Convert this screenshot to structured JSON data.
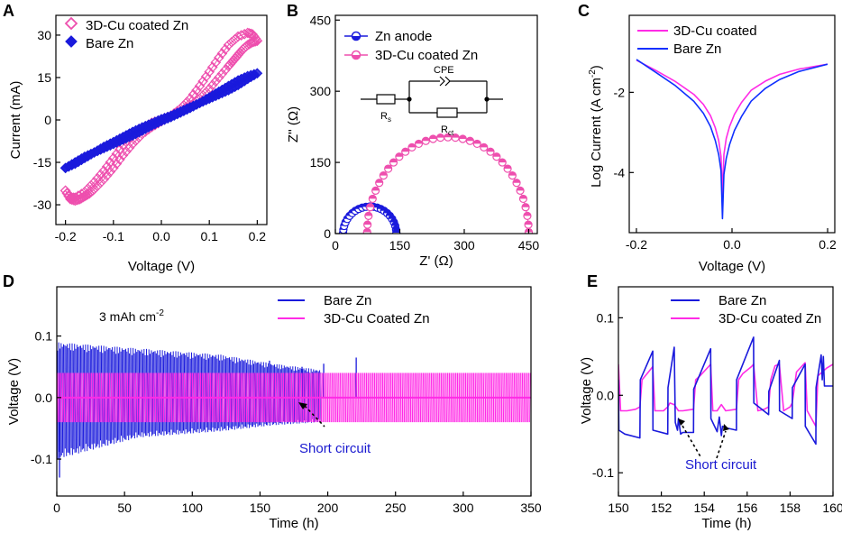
{
  "colors": {
    "blue": "#1a1adc",
    "pink": "#ee4fae",
    "magenta": "#ff2be6",
    "bluebright": "#1030ff",
    "sublabel": "#1a1ad0"
  },
  "chart_data": [
    {
      "panel": "A",
      "type": "line",
      "title": "",
      "xlabel": "Voltage (V)",
      "ylabel": "Current (mA)",
      "xlim": [
        -0.22,
        0.22
      ],
      "ylim": [
        -37,
        37
      ],
      "xticks": [
        -0.2,
        -0.1,
        0.0,
        0.1,
        0.2
      ],
      "xticklabels": [
        "-0.2",
        "-0.1",
        "0.0",
        "0.1",
        "0.2"
      ],
      "yticks": [
        -30,
        -15,
        0,
        15,
        30
      ],
      "yticklabels": [
        "-30",
        "-15",
        "0",
        "15",
        "30"
      ],
      "series": [
        {
          "name": "3D-Cu coated Zn",
          "color": "#ee4fae",
          "marker": "open-diamond",
          "x": [
            -0.2,
            -0.19,
            -0.18,
            -0.17,
            -0.16,
            -0.15,
            -0.14,
            -0.12,
            -0.1,
            -0.08,
            -0.06,
            -0.04,
            -0.02,
            0.0,
            0.02,
            0.04,
            0.06,
            0.08,
            0.1,
            0.12,
            0.14,
            0.16,
            0.18,
            0.19,
            0.2,
            0.19,
            0.18,
            0.17,
            0.16,
            0.15,
            0.14,
            0.12,
            0.1,
            0.08,
            0.06,
            0.04,
            0.02,
            0.0,
            -0.02,
            -0.04,
            -0.06,
            -0.08,
            -0.1,
            -0.12,
            -0.14,
            -0.16,
            -0.18,
            -0.19,
            -0.2
          ],
          "y": [
            -25,
            -28,
            -28.5,
            -28,
            -27,
            -26,
            -24.5,
            -21,
            -17,
            -12.5,
            -8.5,
            -5,
            -2.5,
            -0.5,
            1.5,
            4,
            7.5,
            12,
            17,
            22,
            26.5,
            29.5,
            30.8,
            30.3,
            28,
            27.5,
            26.5,
            25,
            23,
            21,
            19,
            15,
            11,
            7.5,
            5,
            3,
            1.5,
            0.2,
            -1,
            -3,
            -5.5,
            -9,
            -13.5,
            -18,
            -22,
            -25.5,
            -27.5,
            -27.5,
            -25
          ]
        },
        {
          "name": "Bare Zn",
          "color": "#1a1adc",
          "marker": "filled-diamond",
          "x": [
            -0.2,
            -0.18,
            -0.16,
            -0.14,
            -0.12,
            -0.1,
            -0.08,
            -0.06,
            -0.04,
            -0.02,
            0.0,
            0.02,
            0.04,
            0.06,
            0.08,
            0.1,
            0.12,
            0.14,
            0.16,
            0.18,
            0.2,
            0.18,
            0.16,
            0.14,
            0.12,
            0.1,
            0.08,
            0.06,
            0.04,
            0.02,
            0.0,
            -0.02,
            -0.04,
            -0.06,
            -0.08,
            -0.1,
            -0.12,
            -0.14,
            -0.16,
            -0.18,
            -0.2
          ],
          "y": [
            -17,
            -15,
            -13,
            -11.5,
            -10,
            -8.5,
            -7,
            -5.5,
            -3.8,
            -2,
            -0.4,
            1,
            2.6,
            4.2,
            6,
            8,
            10,
            12,
            14,
            15.5,
            16.5,
            14.5,
            12.3,
            10.5,
            9,
            7.5,
            6,
            4.5,
            3,
            1.5,
            0.3,
            -1.2,
            -2.6,
            -4.2,
            -6,
            -7.8,
            -9.5,
            -11.5,
            -13.5,
            -15.5,
            -17
          ]
        }
      ]
    },
    {
      "panel": "B",
      "type": "scatter",
      "title": "",
      "xlabel": "Z' (Ω)",
      "ylabel": "Z'' (Ω)",
      "xlim": [
        0,
        470
      ],
      "ylim": [
        0,
        460
      ],
      "xticks": [
        0,
        150,
        300,
        450
      ],
      "xticklabels": [
        "0",
        "150",
        "300",
        "450"
      ],
      "yticks": [
        0,
        150,
        300,
        450
      ],
      "yticklabels": [
        "0",
        "150",
        "300",
        "450"
      ],
      "series": [
        {
          "name": "Zn anode",
          "color": "#1a1adc",
          "marker": "half-filled-circle",
          "center": 80,
          "radius": 62,
          "ymax": 57
        },
        {
          "name": "3D-Cu coated Zn",
          "color": "#ee4fae",
          "marker": "half-filled-circle",
          "center": 262,
          "radius": 188,
          "ymax": 203
        }
      ],
      "circuit": {
        "label": "CPE",
        "r1": "R",
        "r1_sub": "s",
        "r2": "R",
        "r2_sub": "ct"
      }
    },
    {
      "panel": "C",
      "type": "line",
      "title": "",
      "xlabel": "Voltage (V)",
      "ylabel": "Log Current (A cm",
      "ylabel_sup": "-2",
      "ylabel_tail": ")",
      "xlim": [
        -0.215,
        0.215
      ],
      "ylim": [
        -5.5,
        -0.08
      ],
      "xticks": [
        -0.2,
        0.0,
        0.2
      ],
      "xticklabels": [
        "-0.2",
        "0.0",
        "0.2"
      ],
      "yticks": [
        -4,
        -2
      ],
      "yticklabels": [
        "-4",
        "-2"
      ],
      "series": [
        {
          "name": "3D-Cu coated",
          "color": "#ff2be6",
          "x": [
            -0.2,
            -0.16,
            -0.12,
            -0.08,
            -0.06,
            -0.045,
            -0.035,
            -0.028,
            -0.023,
            -0.02,
            -0.017,
            -0.012,
            -0.005,
            0.005,
            0.02,
            0.04,
            0.07,
            0.1,
            0.14,
            0.2
          ],
          "y": [
            -1.2,
            -1.45,
            -1.72,
            -2.05,
            -2.3,
            -2.58,
            -2.88,
            -3.2,
            -3.6,
            -4.55,
            -3.55,
            -3.15,
            -2.85,
            -2.55,
            -2.25,
            -1.95,
            -1.72,
            -1.55,
            -1.42,
            -1.3
          ]
        },
        {
          "name": "Bare Zn",
          "color": "#1030ff",
          "x": [
            -0.2,
            -0.16,
            -0.12,
            -0.08,
            -0.06,
            -0.045,
            -0.035,
            -0.028,
            -0.023,
            -0.02,
            -0.017,
            -0.012,
            -0.005,
            0.005,
            0.02,
            0.04,
            0.07,
            0.1,
            0.14,
            0.2
          ],
          "y": [
            -1.18,
            -1.5,
            -1.82,
            -2.22,
            -2.52,
            -2.85,
            -3.2,
            -3.55,
            -3.95,
            -5.15,
            -4.05,
            -3.65,
            -3.3,
            -2.95,
            -2.6,
            -2.22,
            -1.9,
            -1.68,
            -1.48,
            -1.3
          ]
        }
      ]
    },
    {
      "panel": "D",
      "type": "line",
      "title": "",
      "xlabel": "Time (h)",
      "ylabel": "Voltage (V)",
      "xlim": [
        0,
        350
      ],
      "ylim": [
        -0.16,
        0.18
      ],
      "xticks": [
        0,
        50,
        100,
        150,
        200,
        250,
        300,
        350
      ],
      "xticklabels": [
        "0",
        "50",
        "100",
        "150",
        "200",
        "250",
        "300",
        "350"
      ],
      "yticks": [
        -0.1,
        0.0,
        0.1
      ],
      "yticklabels": [
        "-0.1",
        "0.0",
        "0.1"
      ],
      "annotation": "3 mAh cm",
      "annotation_sup": "-2",
      "series": [
        {
          "name": "Bare Zn",
          "color": "#1a1adc",
          "x_end": 195,
          "upper_envelope": [
            [
              0,
              0.09
            ],
            [
              60,
              0.08
            ],
            [
              120,
              0.07
            ],
            [
              160,
              0.055
            ],
            [
              195,
              0.045
            ]
          ],
          "lower_envelope": [
            [
              0,
              -0.1
            ],
            [
              60,
              -0.065
            ],
            [
              120,
              -0.055
            ],
            [
              160,
              -0.045
            ],
            [
              195,
              -0.04
            ]
          ],
          "spikes": [
            [
              2,
              -0.13
            ],
            [
              157,
              0.06
            ],
            [
              181,
              0.05
            ],
            [
              197,
              0.055
            ],
            [
              221,
              0.065
            ]
          ]
        },
        {
          "name": "3D-Cu Coated Zn",
          "color": "#ff2be6",
          "x_end": 350,
          "upper": 0.04,
          "lower": -0.04
        }
      ],
      "callout": "Short circuit"
    },
    {
      "panel": "E",
      "type": "line",
      "title": "",
      "xlabel": "Time (h)",
      "ylabel": "Voltage (V)",
      "xlim": [
        150,
        160
      ],
      "ylim": [
        -0.13,
        0.14
      ],
      "xticks": [
        150,
        152,
        154,
        156,
        158,
        160
      ],
      "xticklabels": [
        "150",
        "152",
        "154",
        "156",
        "158",
        "160"
      ],
      "yticks": [
        -0.1,
        0.0,
        0.1
      ],
      "yticklabels": [
        "-0.1",
        "0.0",
        "0.1"
      ],
      "series": [
        {
          "name": "Bare Zn",
          "color": "#1a1adc",
          "x": [
            150.0,
            150.02,
            150.3,
            151.0,
            151.02,
            151.6,
            151.61,
            152.3,
            152.31,
            152.6,
            152.65,
            152.75,
            152.8,
            152.9,
            153.0,
            153.5,
            153.51,
            154.3,
            154.31,
            154.6,
            154.7,
            154.8,
            154.85,
            155.0,
            155.5,
            155.51,
            156.3,
            156.31,
            157.0,
            157.01,
            157.5,
            157.51,
            158.1,
            158.11,
            158.7,
            158.71,
            159.2,
            159.21,
            159.45,
            159.5,
            159.55,
            159.6,
            160.0
          ],
          "y": [
            0.02,
            -0.045,
            -0.05,
            -0.055,
            0.02,
            0.057,
            -0.045,
            -0.05,
            0.01,
            0.062,
            -0.035,
            -0.045,
            -0.03,
            -0.05,
            -0.048,
            -0.048,
            0.008,
            0.06,
            -0.03,
            -0.047,
            -0.028,
            -0.052,
            -0.04,
            -0.042,
            -0.045,
            0.02,
            0.075,
            -0.01,
            -0.025,
            0.005,
            0.045,
            -0.02,
            -0.03,
            0.01,
            0.04,
            -0.04,
            -0.063,
            0.01,
            0.052,
            0.02,
            0.05,
            0.012,
            0.012
          ]
        },
        {
          "name": "3D-Cu coated Zn",
          "color": "#ff2be6",
          "x": [
            150.0,
            150.1,
            150.4,
            150.8,
            151.0,
            151.1,
            151.4,
            151.6,
            151.7,
            152.1,
            152.3,
            152.4,
            152.6,
            152.8,
            153.0,
            153.5,
            153.6,
            153.8,
            154.2,
            154.3,
            154.4,
            154.6,
            154.8,
            155.0,
            155.5,
            155.6,
            155.8,
            156.2,
            156.3,
            156.5,
            156.8,
            157.0,
            157.1,
            157.3,
            157.5,
            157.7,
            158.0,
            158.1,
            158.3,
            158.7,
            158.8,
            159.0,
            159.2,
            159.3,
            159.7,
            160.0
          ],
          "y": [
            0.04,
            -0.02,
            -0.02,
            -0.018,
            -0.015,
            0.02,
            0.03,
            0.037,
            -0.02,
            -0.02,
            -0.015,
            -0.01,
            -0.012,
            -0.02,
            -0.02,
            -0.018,
            0.02,
            0.025,
            0.037,
            0.04,
            -0.02,
            -0.02,
            -0.012,
            -0.02,
            -0.018,
            0.02,
            0.028,
            0.037,
            0.04,
            -0.02,
            -0.018,
            -0.015,
            0.02,
            0.038,
            0.04,
            -0.02,
            -0.015,
            -0.01,
            0.03,
            0.042,
            -0.02,
            -0.03,
            -0.04,
            0.025,
            0.035,
            0.04
          ]
        }
      ],
      "callout": "Short circuit"
    }
  ]
}
